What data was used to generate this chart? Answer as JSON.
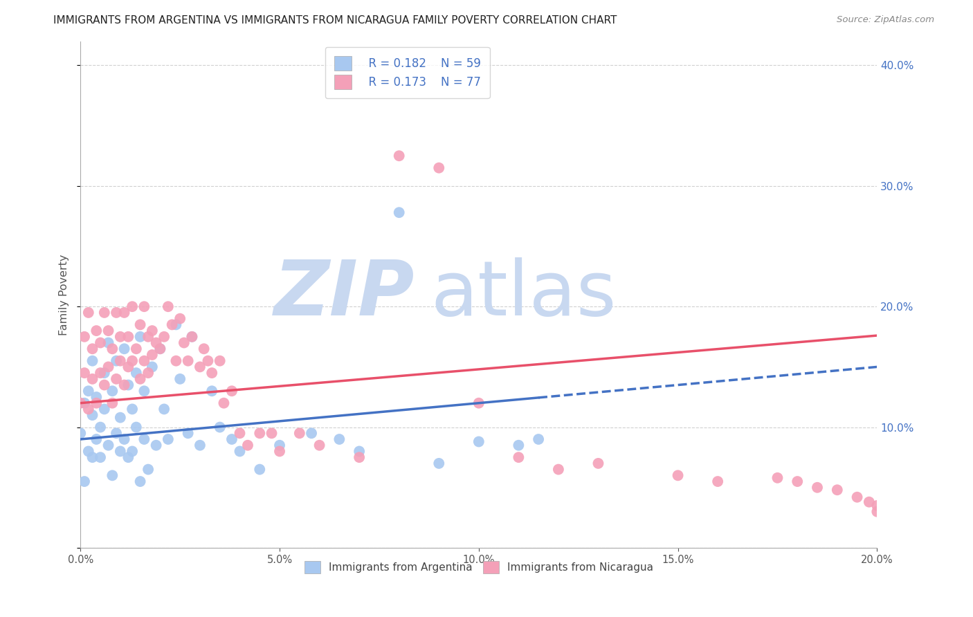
{
  "title": "IMMIGRANTS FROM ARGENTINA VS IMMIGRANTS FROM NICARAGUA FAMILY POVERTY CORRELATION CHART",
  "source": "Source: ZipAtlas.com",
  "ylabel_label": "Family Poverty",
  "series": [
    {
      "name": "Immigrants from Argentina",
      "color": "#a8c8f0",
      "line_color": "#4472c4",
      "R": 0.182,
      "N": 59,
      "x": [
        0.0,
        0.001,
        0.001,
        0.002,
        0.002,
        0.003,
        0.003,
        0.003,
        0.004,
        0.004,
        0.005,
        0.005,
        0.006,
        0.006,
        0.007,
        0.007,
        0.008,
        0.008,
        0.009,
        0.009,
        0.01,
        0.01,
        0.011,
        0.011,
        0.012,
        0.012,
        0.013,
        0.013,
        0.014,
        0.014,
        0.015,
        0.015,
        0.016,
        0.016,
        0.017,
        0.018,
        0.019,
        0.02,
        0.021,
        0.022,
        0.024,
        0.025,
        0.027,
        0.028,
        0.03,
        0.033,
        0.035,
        0.038,
        0.04,
        0.045,
        0.05,
        0.058,
        0.065,
        0.07,
        0.08,
        0.09,
        0.1,
        0.11,
        0.115
      ],
      "y": [
        0.095,
        0.055,
        0.12,
        0.08,
        0.13,
        0.075,
        0.11,
        0.155,
        0.09,
        0.125,
        0.1,
        0.075,
        0.115,
        0.145,
        0.085,
        0.17,
        0.06,
        0.13,
        0.095,
        0.155,
        0.108,
        0.08,
        0.165,
        0.09,
        0.075,
        0.135,
        0.115,
        0.08,
        0.145,
        0.1,
        0.055,
        0.175,
        0.09,
        0.13,
        0.065,
        0.15,
        0.085,
        0.165,
        0.115,
        0.09,
        0.185,
        0.14,
        0.095,
        0.175,
        0.085,
        0.13,
        0.1,
        0.09,
        0.08,
        0.065,
        0.085,
        0.095,
        0.09,
        0.08,
        0.278,
        0.07,
        0.088,
        0.085,
        0.09
      ]
    },
    {
      "name": "Immigrants from Nicaragua",
      "color": "#f4a0b8",
      "line_color": "#e8506a",
      "R": 0.173,
      "N": 77,
      "x": [
        0.0,
        0.001,
        0.001,
        0.002,
        0.002,
        0.003,
        0.003,
        0.004,
        0.004,
        0.005,
        0.005,
        0.006,
        0.006,
        0.007,
        0.007,
        0.008,
        0.008,
        0.009,
        0.009,
        0.01,
        0.01,
        0.011,
        0.011,
        0.012,
        0.012,
        0.013,
        0.013,
        0.014,
        0.015,
        0.015,
        0.016,
        0.016,
        0.017,
        0.017,
        0.018,
        0.018,
        0.019,
        0.02,
        0.021,
        0.022,
        0.023,
        0.024,
        0.025,
        0.026,
        0.027,
        0.028,
        0.03,
        0.031,
        0.032,
        0.033,
        0.035,
        0.036,
        0.038,
        0.04,
        0.042,
        0.045,
        0.048,
        0.05,
        0.055,
        0.06,
        0.07,
        0.08,
        0.09,
        0.1,
        0.11,
        0.12,
        0.13,
        0.15,
        0.16,
        0.175,
        0.18,
        0.185,
        0.19,
        0.195,
        0.198,
        0.2,
        0.2
      ],
      "y": [
        0.12,
        0.175,
        0.145,
        0.115,
        0.195,
        0.14,
        0.165,
        0.12,
        0.18,
        0.145,
        0.17,
        0.135,
        0.195,
        0.15,
        0.18,
        0.12,
        0.165,
        0.14,
        0.195,
        0.155,
        0.175,
        0.135,
        0.195,
        0.15,
        0.175,
        0.155,
        0.2,
        0.165,
        0.14,
        0.185,
        0.155,
        0.2,
        0.145,
        0.175,
        0.16,
        0.18,
        0.17,
        0.165,
        0.175,
        0.2,
        0.185,
        0.155,
        0.19,
        0.17,
        0.155,
        0.175,
        0.15,
        0.165,
        0.155,
        0.145,
        0.155,
        0.12,
        0.13,
        0.095,
        0.085,
        0.095,
        0.095,
        0.08,
        0.095,
        0.085,
        0.075,
        0.325,
        0.315,
        0.12,
        0.075,
        0.065,
        0.07,
        0.06,
        0.055,
        0.058,
        0.055,
        0.05,
        0.048,
        0.042,
        0.038,
        0.035,
        0.03
      ]
    }
  ],
  "xlim": [
    0.0,
    0.2
  ],
  "ylim": [
    0.0,
    0.42
  ],
  "xticks": [
    0.0,
    0.05,
    0.1,
    0.15,
    0.2
  ],
  "yticks": [
    0.0,
    0.1,
    0.2,
    0.3,
    0.4
  ],
  "grid_color": "#d0d0d0",
  "background_color": "#ffffff",
  "watermark_zip": "ZIP",
  "watermark_atlas": "atlas",
  "watermark_color": "#c8d8f0",
  "legend_text_color": "#4472c4",
  "title_color": "#222222",
  "source_color": "#888888",
  "trend_line_intercept_argentina": 0.09,
  "trend_line_slope_argentina": 0.3,
  "trend_line_intercept_nicaragua": 0.12,
  "trend_line_slope_nicaragua": 0.28
}
